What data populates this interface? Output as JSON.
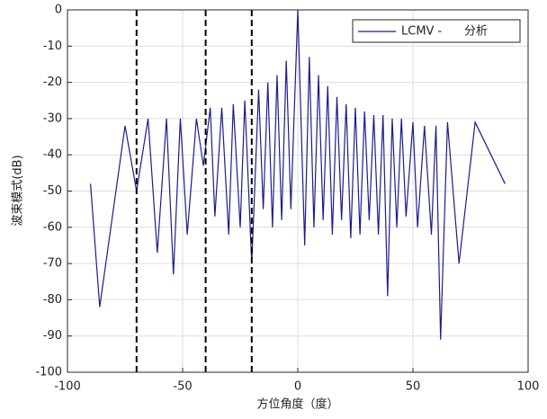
{
  "chart_data": {
    "type": "line",
    "xlabel": "方位角度（度）",
    "ylabel": "波束模式(dB)",
    "x": [
      -90,
      -86,
      -75,
      -70,
      -65,
      -61,
      -57,
      -54,
      -51,
      -48,
      -44,
      -41,
      -38,
      -36,
      -33,
      -30,
      -28,
      -25,
      -23,
      -20,
      -17,
      -15,
      -13,
      -11,
      -9,
      -7,
      -5,
      -3,
      0,
      3,
      5,
      7,
      9,
      11,
      13,
      15,
      17,
      19,
      21,
      23,
      25,
      27,
      29,
      31,
      33,
      35,
      37,
      39,
      41,
      43,
      45,
      47,
      50,
      52,
      55,
      58,
      60,
      62,
      65,
      70,
      77,
      90
    ],
    "series": [
      {
        "name": "LCMV -      分析",
        "color": "#1c1c8c",
        "values": [
          -48,
          -82,
          -32,
          -50,
          -30,
          -67,
          -30,
          -73,
          -30,
          -62,
          -30,
          -43,
          -27,
          -57,
          -27,
          -62,
          -26,
          -60,
          -25,
          -70,
          -22,
          -55,
          -20,
          -60,
          -18,
          -58,
          -14,
          -55,
          0,
          -65,
          -13,
          -60,
          -18,
          -58,
          -21,
          -62,
          -24,
          -58,
          -26,
          -63,
          -27,
          -62,
          -28,
          -58,
          -29,
          -62,
          -29,
          -79,
          -30,
          -60,
          -30,
          -57,
          -31,
          -60,
          -32,
          -62,
          -32,
          -91,
          -31,
          -70,
          -31,
          -48
        ]
      }
    ],
    "vlines": [
      -70,
      -40,
      -20
    ],
    "xlim": [
      -100,
      100
    ],
    "xticks": [
      -100,
      -50,
      0,
      50,
      100
    ],
    "ylim": [
      -100,
      0
    ],
    "yticks": [
      -100,
      -90,
      -80,
      -70,
      -60,
      -50,
      -40,
      -30,
      -20,
      -10,
      0
    ],
    "grid": true,
    "legend": "upper right"
  }
}
